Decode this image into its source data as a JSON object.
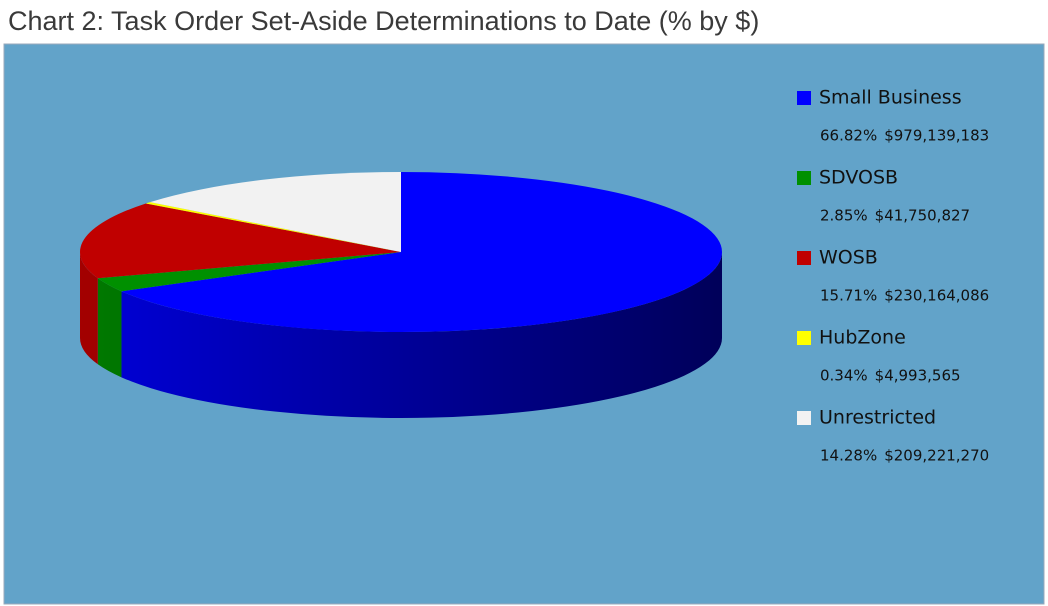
{
  "chart_data": {
    "type": "pie3d",
    "title": "Chart 2: Task Order Set-Aside Determinations to Date (% by $)",
    "categories": [
      "Small Business",
      "SDVOSB",
      "WOSB",
      "HubZone",
      "Unrestricted"
    ],
    "values": [
      66.82,
      2.85,
      15.71,
      0.34,
      14.28
    ],
    "value_labels": [
      "66.82%",
      "2.85%",
      "15.71%",
      "0.34%",
      "14.28%"
    ],
    "amounts": [
      979139183,
      41750827,
      230164086,
      4993565,
      209221270
    ],
    "amount_labels": [
      "$979,139,183",
      "$41,750,827",
      "$230,164,086",
      "$4,993,565",
      "$209,221,270"
    ],
    "colors": [
      "#0000ff",
      "#009000",
      "#c00000",
      "#ffff00",
      "#f2f2f2"
    ],
    "legend": "right"
  }
}
